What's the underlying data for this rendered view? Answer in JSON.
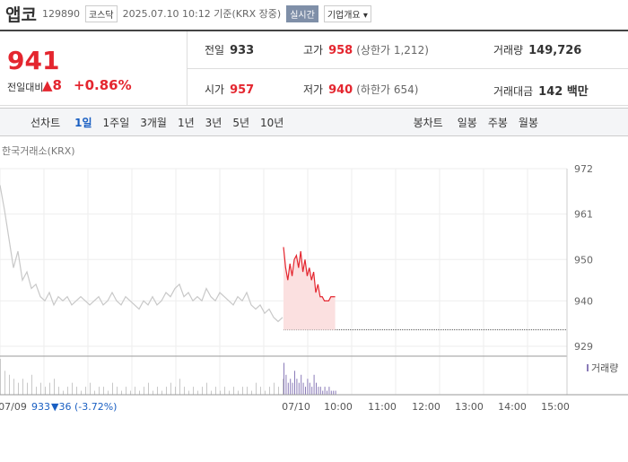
{
  "header": {
    "name": "앱코",
    "code": "129890",
    "market": "코스닥",
    "timestamp": "2025.07.10 10:12 기준(KRX 장중)",
    "realtime": "실시간",
    "company": "기업개요"
  },
  "summary": {
    "price": "941",
    "change_label": "전일대비",
    "change": "▲8",
    "change_pct": "+0.86%",
    "cells": [
      {
        "label": "전일",
        "value": "933",
        "extra": ""
      },
      {
        "label": "고가",
        "value": "958",
        "extra": "(상한가 1,212)"
      },
      {
        "label": "거래량",
        "value": "149,726",
        "extra": ""
      },
      {
        "label": "시가",
        "value": "957",
        "extra": ""
      },
      {
        "label": "저가",
        "value": "940",
        "extra": "(하한가 654)"
      },
      {
        "label": "거래대금",
        "value": "142 백만",
        "extra": ""
      }
    ]
  },
  "tabs": {
    "line_title": "선차트",
    "line": [
      "1일",
      "1주일",
      "3개월",
      "1년",
      "3년",
      "5년",
      "10년"
    ],
    "candle_title": "봉차트",
    "candle": [
      "일봉",
      "주봉",
      "월봉"
    ]
  },
  "chart": {
    "source": "한국거래소(KRX)",
    "ylim": [
      929,
      972
    ],
    "yticks": [
      972,
      961,
      950,
      940,
      929
    ],
    "baseline": 933,
    "xticks": [
      "07/09",
      "07/10",
      "10:00",
      "11:00",
      "12:00",
      "13:00",
      "14:00",
      "15:00"
    ],
    "prev_day": {
      "color": "#c8c8c8",
      "values": [
        968,
        962,
        955,
        948,
        952,
        945,
        947,
        943,
        944,
        941,
        940,
        942,
        939,
        941,
        940,
        941,
        939,
        940,
        941,
        940,
        939,
        940,
        941,
        939,
        940,
        942,
        940,
        939,
        941,
        940,
        939,
        938,
        940,
        939,
        941,
        939,
        940,
        942,
        941,
        943,
        944,
        941,
        942,
        940,
        941,
        940,
        943,
        941,
        940,
        942,
        941,
        940,
        939,
        941,
        940,
        942,
        939,
        938,
        939,
        937,
        938,
        936,
        935,
        936
      ]
    },
    "today": {
      "color": "#e4262f",
      "values": [
        953,
        948,
        945,
        949,
        946,
        950,
        951,
        948,
        952,
        947,
        950,
        946,
        948,
        945,
        947,
        942,
        944,
        941,
        941,
        940,
        940,
        940,
        941,
        941,
        941
      ]
    },
    "volume_label": "거래량",
    "volume_prev": {
      "color": "#c8c8c8",
      "values": [
        9,
        6,
        5,
        4,
        3,
        4,
        3,
        5,
        2,
        3,
        2,
        3,
        4,
        2,
        1,
        2,
        3,
        2,
        1,
        2,
        3,
        1,
        2,
        2,
        1,
        3,
        2,
        1,
        2,
        1,
        2,
        1,
        2,
        3,
        1,
        2,
        1,
        2,
        3,
        2,
        4,
        2,
        1,
        2,
        1,
        2,
        3,
        1,
        2,
        1,
        2,
        1,
        2,
        1,
        2,
        2,
        1,
        3,
        2,
        1,
        2,
        3,
        2,
        4
      ]
    },
    "volume_today": {
      "color": "#8a7bb8",
      "values": [
        8,
        5,
        3,
        4,
        3,
        6,
        4,
        3,
        5,
        3,
        2,
        4,
        3,
        2,
        5,
        3,
        2,
        2,
        1,
        2,
        1,
        2,
        1,
        1,
        1
      ]
    },
    "footer": {
      "date": "07/09",
      "close": "933",
      "change": "▼36 (-3.72%)"
    }
  }
}
